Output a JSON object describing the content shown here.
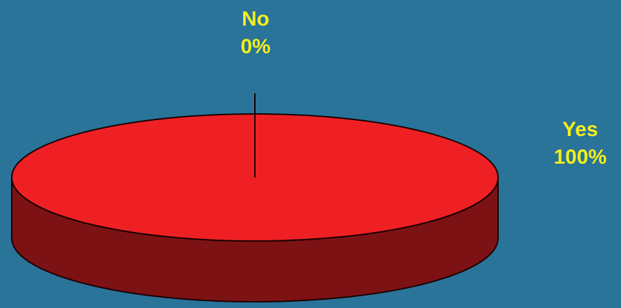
{
  "chart_data": {
    "type": "pie",
    "style": "3d",
    "slices": [
      {
        "category": "No",
        "value": 0,
        "percent_label": "0%"
      },
      {
        "category": "Yes",
        "value": 100,
        "percent_label": "100%"
      }
    ]
  },
  "colors": {
    "background": "#2a7399",
    "slice_top": "#ef2024",
    "slice_side": "#7d1214",
    "outline": "#1a0000",
    "label_text": "#f2ee1b"
  }
}
